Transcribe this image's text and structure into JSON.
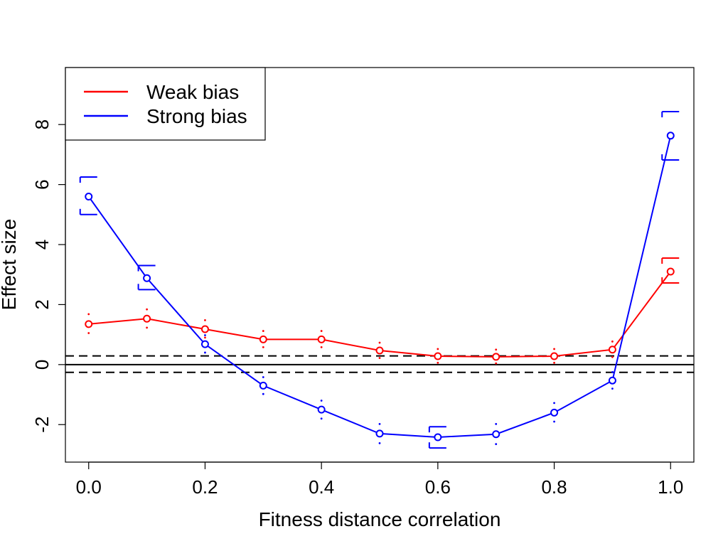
{
  "chart_data": {
    "type": "line",
    "title": "",
    "xlabel": "Fitness distance correlation",
    "ylabel": "Effect size",
    "xlim": [
      -0.04,
      1.04
    ],
    "ylim": [
      -3.25,
      9.9
    ],
    "x_ticks": [
      "0.0",
      "0.2",
      "0.4",
      "0.6",
      "0.8",
      "1.0"
    ],
    "y_ticks": [
      "-2",
      "0",
      "2",
      "4",
      "6",
      "8"
    ],
    "x": [
      0.0,
      0.1,
      0.2,
      0.3,
      0.4,
      0.5,
      0.6,
      0.7,
      0.8,
      0.9,
      1.0
    ],
    "series": [
      {
        "name": "Weak bias",
        "color": "#ff0000",
        "values": [
          1.35,
          1.53,
          1.18,
          0.84,
          0.84,
          0.47,
          0.28,
          0.26,
          0.28,
          0.5,
          3.1
        ],
        "err_low": [
          1.05,
          1.23,
          0.9,
          0.58,
          0.58,
          0.22,
          0.06,
          0.04,
          0.06,
          0.25,
          2.72
        ],
        "err_high": [
          1.68,
          1.84,
          1.48,
          1.12,
          1.12,
          0.73,
          0.52,
          0.5,
          0.52,
          0.77,
          3.55
        ],
        "err_style": [
          "dot",
          "dot",
          "dot",
          "dot",
          "dot",
          "dot",
          "dot",
          "dot",
          "dot",
          "dot",
          "cap"
        ]
      },
      {
        "name": "Strong bias",
        "color": "#0000ff",
        "values": [
          5.6,
          2.88,
          0.68,
          -0.7,
          -1.5,
          -2.3,
          -2.42,
          -2.32,
          -1.6,
          -0.53,
          7.63
        ],
        "err_low": [
          5.0,
          2.5,
          0.4,
          -0.98,
          -1.8,
          -2.62,
          -2.78,
          -2.65,
          -1.9,
          -0.8,
          6.82
        ],
        "err_high": [
          6.25,
          3.3,
          0.98,
          -0.42,
          -1.2,
          -1.98,
          -2.07,
          -1.98,
          -1.28,
          -0.25,
          8.43
        ],
        "err_style": [
          "cap",
          "cap",
          "dot",
          "dot",
          "dot",
          "dot",
          "cap",
          "dot",
          "dot",
          "dot",
          "cap"
        ]
      }
    ],
    "reference_lines": [
      {
        "y": 0,
        "style": "solid"
      },
      {
        "y": 0.29,
        "style": "dashed"
      },
      {
        "y": -0.26,
        "style": "dashed"
      }
    ],
    "legend_position": "top-left",
    "grid": false
  }
}
